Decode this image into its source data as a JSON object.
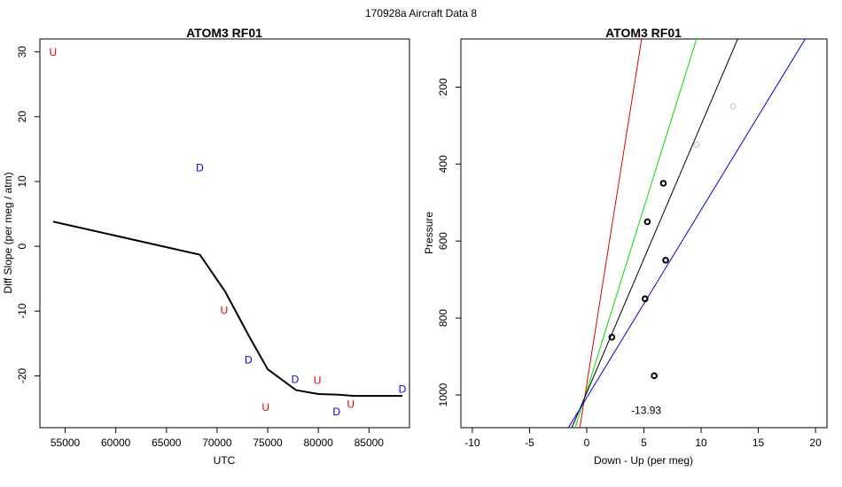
{
  "suptitle": "170928a   Aircraft Data 8",
  "chart_data": [
    {
      "type": "line",
      "title": "ATOM3 RF01",
      "xlabel": "UTC",
      "ylabel": "Diff Slope (per meg / atm)",
      "xlim": [
        52500,
        89000
      ],
      "ylim": [
        -28,
        32
      ],
      "x_ticks": [
        55000,
        60000,
        65000,
        70000,
        75000,
        80000,
        85000
      ],
      "y_ticks": [
        30,
        20,
        10,
        0,
        -10,
        -20
      ],
      "grid": false,
      "line": {
        "x": [
          53800,
          68300,
          70800,
          73200,
          75000,
          77800,
          80000,
          82000,
          83500,
          86000,
          88300
        ],
        "y": [
          3.8,
          -1.3,
          -7.0,
          -14.0,
          -19.0,
          -22.2,
          -22.8,
          -22.9,
          -23.1,
          -23.1,
          -23.1
        ]
      },
      "markers": [
        {
          "x": 53800,
          "y": 30,
          "label": "U",
          "color": "#dd0000"
        },
        {
          "x": 68300,
          "y": 12.2,
          "label": "D",
          "color": "#0000dd"
        },
        {
          "x": 70700,
          "y": -9.8,
          "label": "U",
          "color": "#dd0000"
        },
        {
          "x": 73100,
          "y": -17.5,
          "label": "D",
          "color": "#0000dd"
        },
        {
          "x": 74800,
          "y": -24.8,
          "label": "U",
          "color": "#dd0000"
        },
        {
          "x": 77700,
          "y": -20.5,
          "label": "D",
          "color": "#0000dd"
        },
        {
          "x": 79900,
          "y": -20.6,
          "label": "U",
          "color": "#dd0000"
        },
        {
          "x": 81800,
          "y": -25.5,
          "label": "D",
          "color": "#0000dd"
        },
        {
          "x": 83200,
          "y": -24.3,
          "label": "U",
          "color": "#dd0000"
        },
        {
          "x": 88300,
          "y": -22.0,
          "label": "D",
          "color": "#0000dd"
        }
      ]
    },
    {
      "type": "scatter",
      "title": "ATOM3 RF01",
      "xlabel": "Down - Up (per meg)",
      "ylabel": "Pressure",
      "xlim": [
        -11,
        21
      ],
      "ylim": [
        1085,
        75
      ],
      "y_reversed": true,
      "x_ticks": [
        -10,
        -5,
        0,
        5,
        10,
        15,
        20
      ],
      "y_ticks": [
        200,
        400,
        600,
        800,
        1000
      ],
      "grid": false,
      "points": [
        {
          "x": 6.7,
          "y": 450,
          "color": "#000000"
        },
        {
          "x": 5.3,
          "y": 550,
          "color": "#000000"
        },
        {
          "x": 6.9,
          "y": 650,
          "color": "#000000"
        },
        {
          "x": 5.1,
          "y": 750,
          "color": "#000000"
        },
        {
          "x": 2.2,
          "y": 850,
          "color": "#000000"
        },
        {
          "x": 5.9,
          "y": 950,
          "color": "#000000"
        },
        {
          "x": 9.6,
          "y": 350,
          "color": "#bbbbbb"
        },
        {
          "x": 12.8,
          "y": 250,
          "color": "#bbbbbb"
        }
      ],
      "fit_lines": [
        {
          "color": "#dd0000",
          "x": [
            -0.6,
            4.8
          ],
          "y": [
            1085,
            75
          ]
        },
        {
          "color": "#00dd00",
          "x": [
            -1.0,
            9.6
          ],
          "y": [
            1085,
            75
          ]
        },
        {
          "color": "#000000",
          "x": [
            -1.3,
            13.2
          ],
          "y": [
            1085,
            75
          ]
        },
        {
          "color": "#0000dd",
          "x": [
            -1.6,
            19.1
          ],
          "y": [
            1085,
            75
          ]
        }
      ],
      "annotation": {
        "x": 5.2,
        "y": 1040,
        "text": "-13.93"
      }
    }
  ]
}
